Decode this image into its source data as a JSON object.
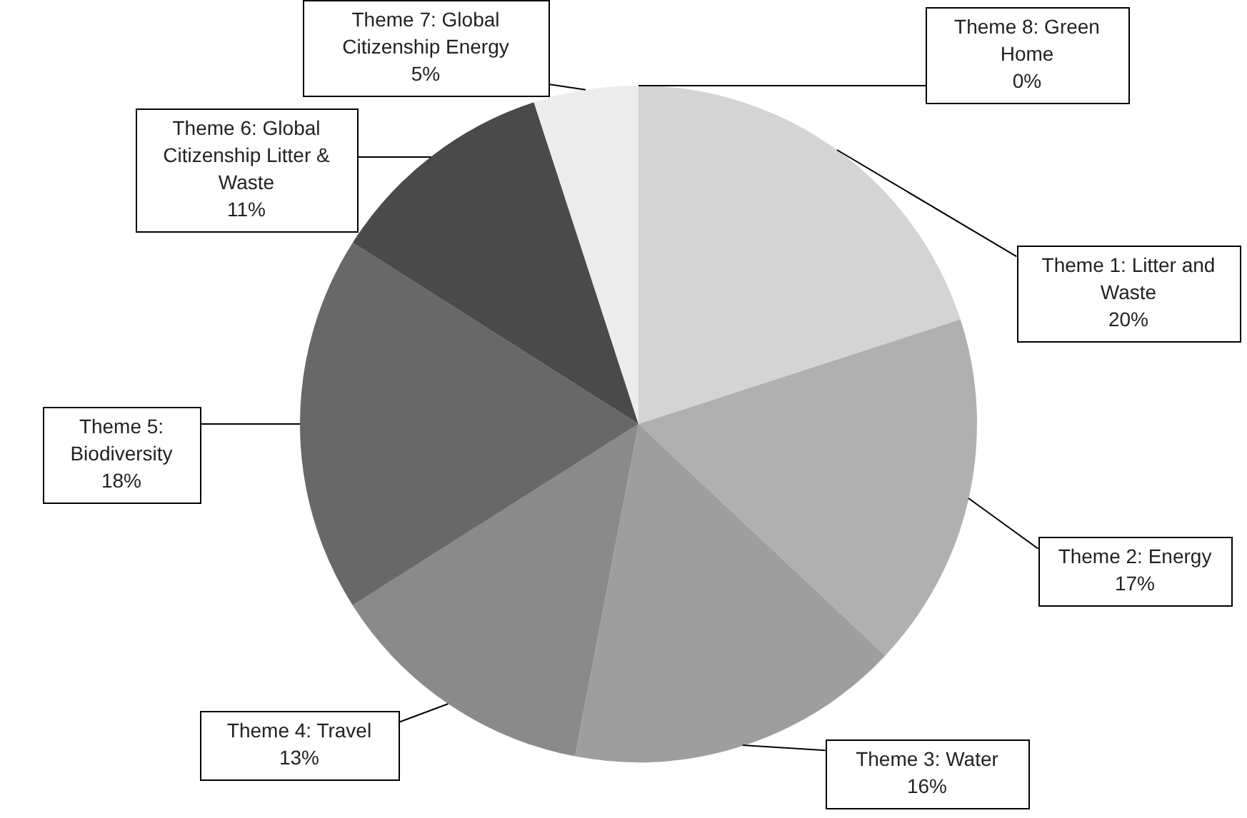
{
  "chart_data": {
    "type": "pie",
    "categories": [
      "Theme 1: Litter and Waste",
      "Theme 2: Energy",
      "Theme 3: Water",
      "Theme 4: Travel",
      "Theme 5: Biodiversity",
      "Theme 6: Global Citizenship Litter & Waste",
      "Theme 7: Global Citizenship Energy",
      "Theme 8: Green Home"
    ],
    "values": [
      20,
      17,
      16,
      13,
      18,
      11,
      5,
      0
    ],
    "colors": [
      "#d4d4d4",
      "#b0b0b0",
      "#9e9e9e",
      "#8a8a8a",
      "#686868",
      "#4a4a4a",
      "#ececec",
      "#f4f4f4"
    ],
    "value_labels": [
      "20%",
      "17%",
      "16%",
      "13%",
      "18%",
      "11%",
      "5%",
      "0%"
    ]
  }
}
